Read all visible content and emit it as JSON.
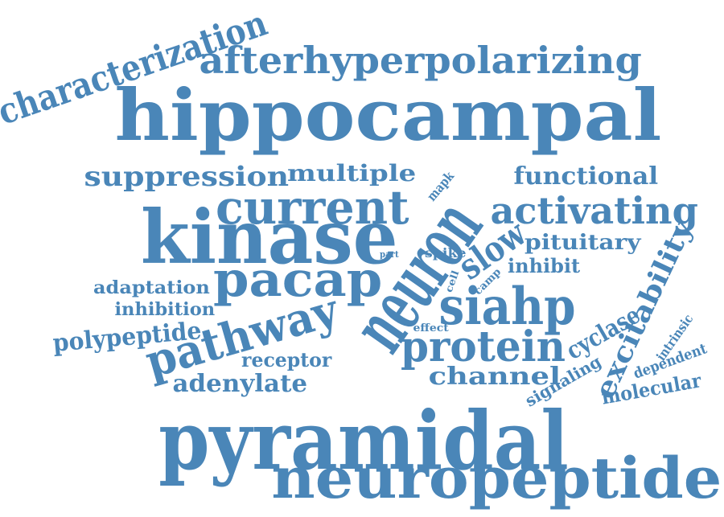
{
  "cloud": {
    "color": "#4a86b8",
    "words": [
      {
        "id": "characterization",
        "text": "characterization"
      },
      {
        "id": "afterhyperpolarizing",
        "text": "afterhyperpolarizing"
      },
      {
        "id": "hippocampal",
        "text": "hippocampal"
      },
      {
        "id": "suppression",
        "text": "suppression"
      },
      {
        "id": "multiple",
        "text": "multiple"
      },
      {
        "id": "functional",
        "text": "functional"
      },
      {
        "id": "current",
        "text": "current"
      },
      {
        "id": "activating",
        "text": "activating"
      },
      {
        "id": "kinase",
        "text": "kinase"
      },
      {
        "id": "neuron",
        "text": "neuron"
      },
      {
        "id": "mapk",
        "text": "mapk"
      },
      {
        "id": "slow",
        "text": "slow"
      },
      {
        "id": "pituitary",
        "text": "pituitary"
      },
      {
        "id": "part",
        "text": "part"
      },
      {
        "id": "spike",
        "text": "spike"
      },
      {
        "id": "inhibit",
        "text": "inhibit"
      },
      {
        "id": "excitability",
        "text": "excitability"
      },
      {
        "id": "adaptation",
        "text": "adaptation"
      },
      {
        "id": "pacap",
        "text": "pacap"
      },
      {
        "id": "cell",
        "text": "cell"
      },
      {
        "id": "camp",
        "text": "camp"
      },
      {
        "id": "siahp",
        "text": "siahp"
      },
      {
        "id": "inhibition",
        "text": "inhibition"
      },
      {
        "id": "polypeptide",
        "text": "polypeptide"
      },
      {
        "id": "pathway",
        "text": "pathway"
      },
      {
        "id": "effect",
        "text": "effect"
      },
      {
        "id": "cyclase",
        "text": "cyclase"
      },
      {
        "id": "intrinsic",
        "text": "intrinsic"
      },
      {
        "id": "protein",
        "text": "protein"
      },
      {
        "id": "receptor",
        "text": "receptor"
      },
      {
        "id": "dependent",
        "text": "dependent"
      },
      {
        "id": "channel",
        "text": "channel"
      },
      {
        "id": "signaling",
        "text": "signaling"
      },
      {
        "id": "adenylate",
        "text": "adenylate"
      },
      {
        "id": "molecular",
        "text": "molecular"
      },
      {
        "id": "pyramidal",
        "text": "pyramidal"
      },
      {
        "id": "neuropeptide",
        "text": "neuropeptide"
      }
    ]
  }
}
